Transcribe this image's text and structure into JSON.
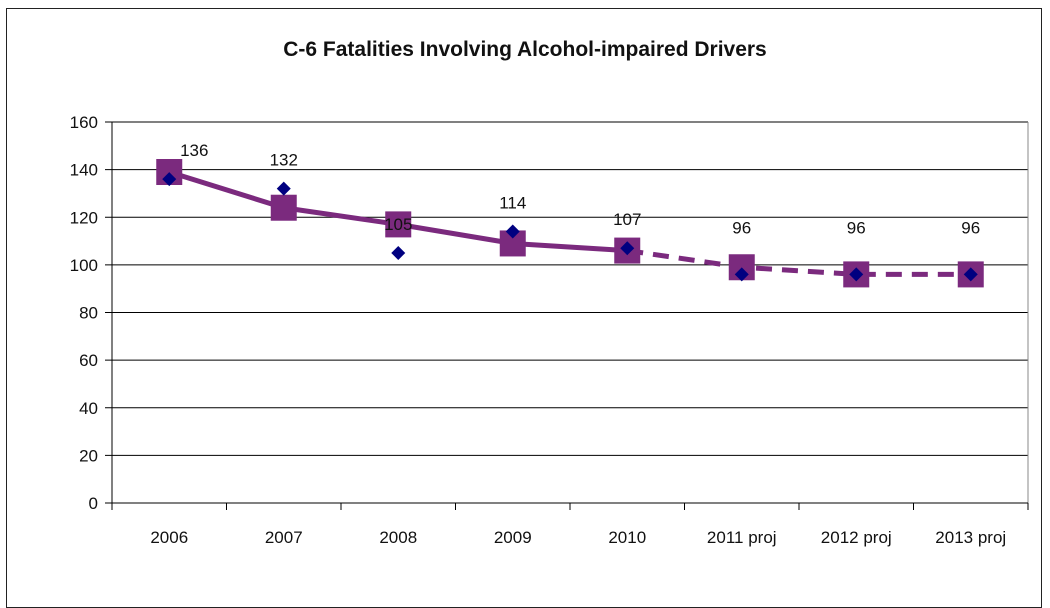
{
  "chart_data": {
    "type": "line",
    "title": "C-6 Fatalities Involving Alcohol-impaired Drivers",
    "xlabel": "",
    "ylabel": "",
    "categories": [
      "2006",
      "2007",
      "2008",
      "2009",
      "2010",
      "2011  proj",
      "2012  proj",
      "2013  proj"
    ],
    "ylim": [
      0,
      160
    ],
    "yticks": [
      0,
      20,
      40,
      60,
      80,
      100,
      120,
      140,
      160
    ],
    "grid": true,
    "legend": "none",
    "series": [
      {
        "marker": "diamond",
        "color": "#000080",
        "values": [
          136,
          132,
          105,
          114,
          107,
          96,
          96,
          96
        ],
        "data_labels": [
          "136",
          "132",
          "105",
          "114",
          "107",
          "96",
          "96",
          "96"
        ]
      },
      {
        "marker": "square",
        "color": "#7B2A7E",
        "values": [
          139,
          124,
          117,
          109,
          106,
          99,
          96,
          96
        ],
        "solid_through_index": 4
      }
    ]
  }
}
